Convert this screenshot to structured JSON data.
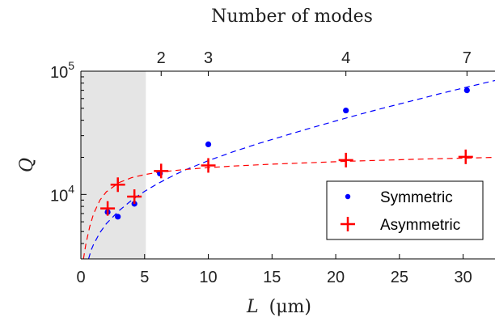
{
  "chart_data": {
    "type": "scatter",
    "title": "",
    "top_axis_label": "Number of modes",
    "top_ticks": [
      {
        "x": 6.3,
        "label": "2"
      },
      {
        "x": 10.0,
        "label": "3"
      },
      {
        "x": 20.8,
        "label": "4"
      },
      {
        "x": 30.3,
        "label": "7"
      }
    ],
    "xlabel_var": "L",
    "xlabel_unit": "(μm)",
    "ylabel": "Q",
    "x_ticks": [
      0,
      5,
      10,
      15,
      20,
      25,
      30
    ],
    "y_ticks": [
      {
        "value": 10000,
        "base": "10",
        "exp": "4"
      },
      {
        "value": 100000,
        "base": "10",
        "exp": "5"
      }
    ],
    "xlim": [
      0,
      32.5
    ],
    "ylim": [
      3000,
      100000
    ],
    "yscale": "log",
    "grid": false,
    "shaded_region": {
      "x_from": 0,
      "x_to": 5.1,
      "color": "#e5e5e5"
    },
    "legend_position": "bottom-right",
    "series": [
      {
        "name": "Symmetric",
        "marker": "dot",
        "color": "#0000ff",
        "x": [
          2.1,
          2.9,
          4.2,
          6.2,
          10.0,
          20.8,
          30.3
        ],
        "y": [
          7200,
          6600,
          8400,
          14800,
          25500,
          48000,
          70000
        ],
        "fit": {
          "x": [
            0.6,
            0.8,
            1.0,
            1.5,
            2,
            3,
            4,
            5,
            6,
            7,
            8,
            10,
            12,
            14,
            16,
            18,
            20,
            22,
            24,
            26,
            28,
            30,
            32.5
          ],
          "y": [
            3000,
            3520,
            3950,
            4900,
            5800,
            7400,
            9000,
            10600,
            12200,
            13800,
            15500,
            18800,
            22300,
            26000,
            30000,
            34500,
            39500,
            45000,
            51000,
            57500,
            65000,
            73000,
            84000
          ]
        }
      },
      {
        "name": "Asymmetric",
        "marker": "plus",
        "color": "#ff0000",
        "x": [
          2.1,
          2.9,
          4.2,
          6.3,
          10.0,
          20.8,
          30.2
        ],
        "y": [
          7700,
          12000,
          9600,
          15500,
          17200,
          19000,
          20200
        ],
        "fit": {
          "x": [
            0.2,
            0.4,
            0.7,
            1.0,
            1.5,
            2,
            3,
            4,
            5,
            6,
            8,
            10,
            12,
            15,
            18,
            21,
            24,
            27,
            30,
            32.5
          ],
          "y": [
            3000,
            4000,
            5500,
            7000,
            9000,
            10500,
            12500,
            13700,
            14500,
            15100,
            15900,
            16500,
            17000,
            17600,
            18100,
            18600,
            19000,
            19400,
            19700,
            20000
          ]
        }
      }
    ]
  }
}
